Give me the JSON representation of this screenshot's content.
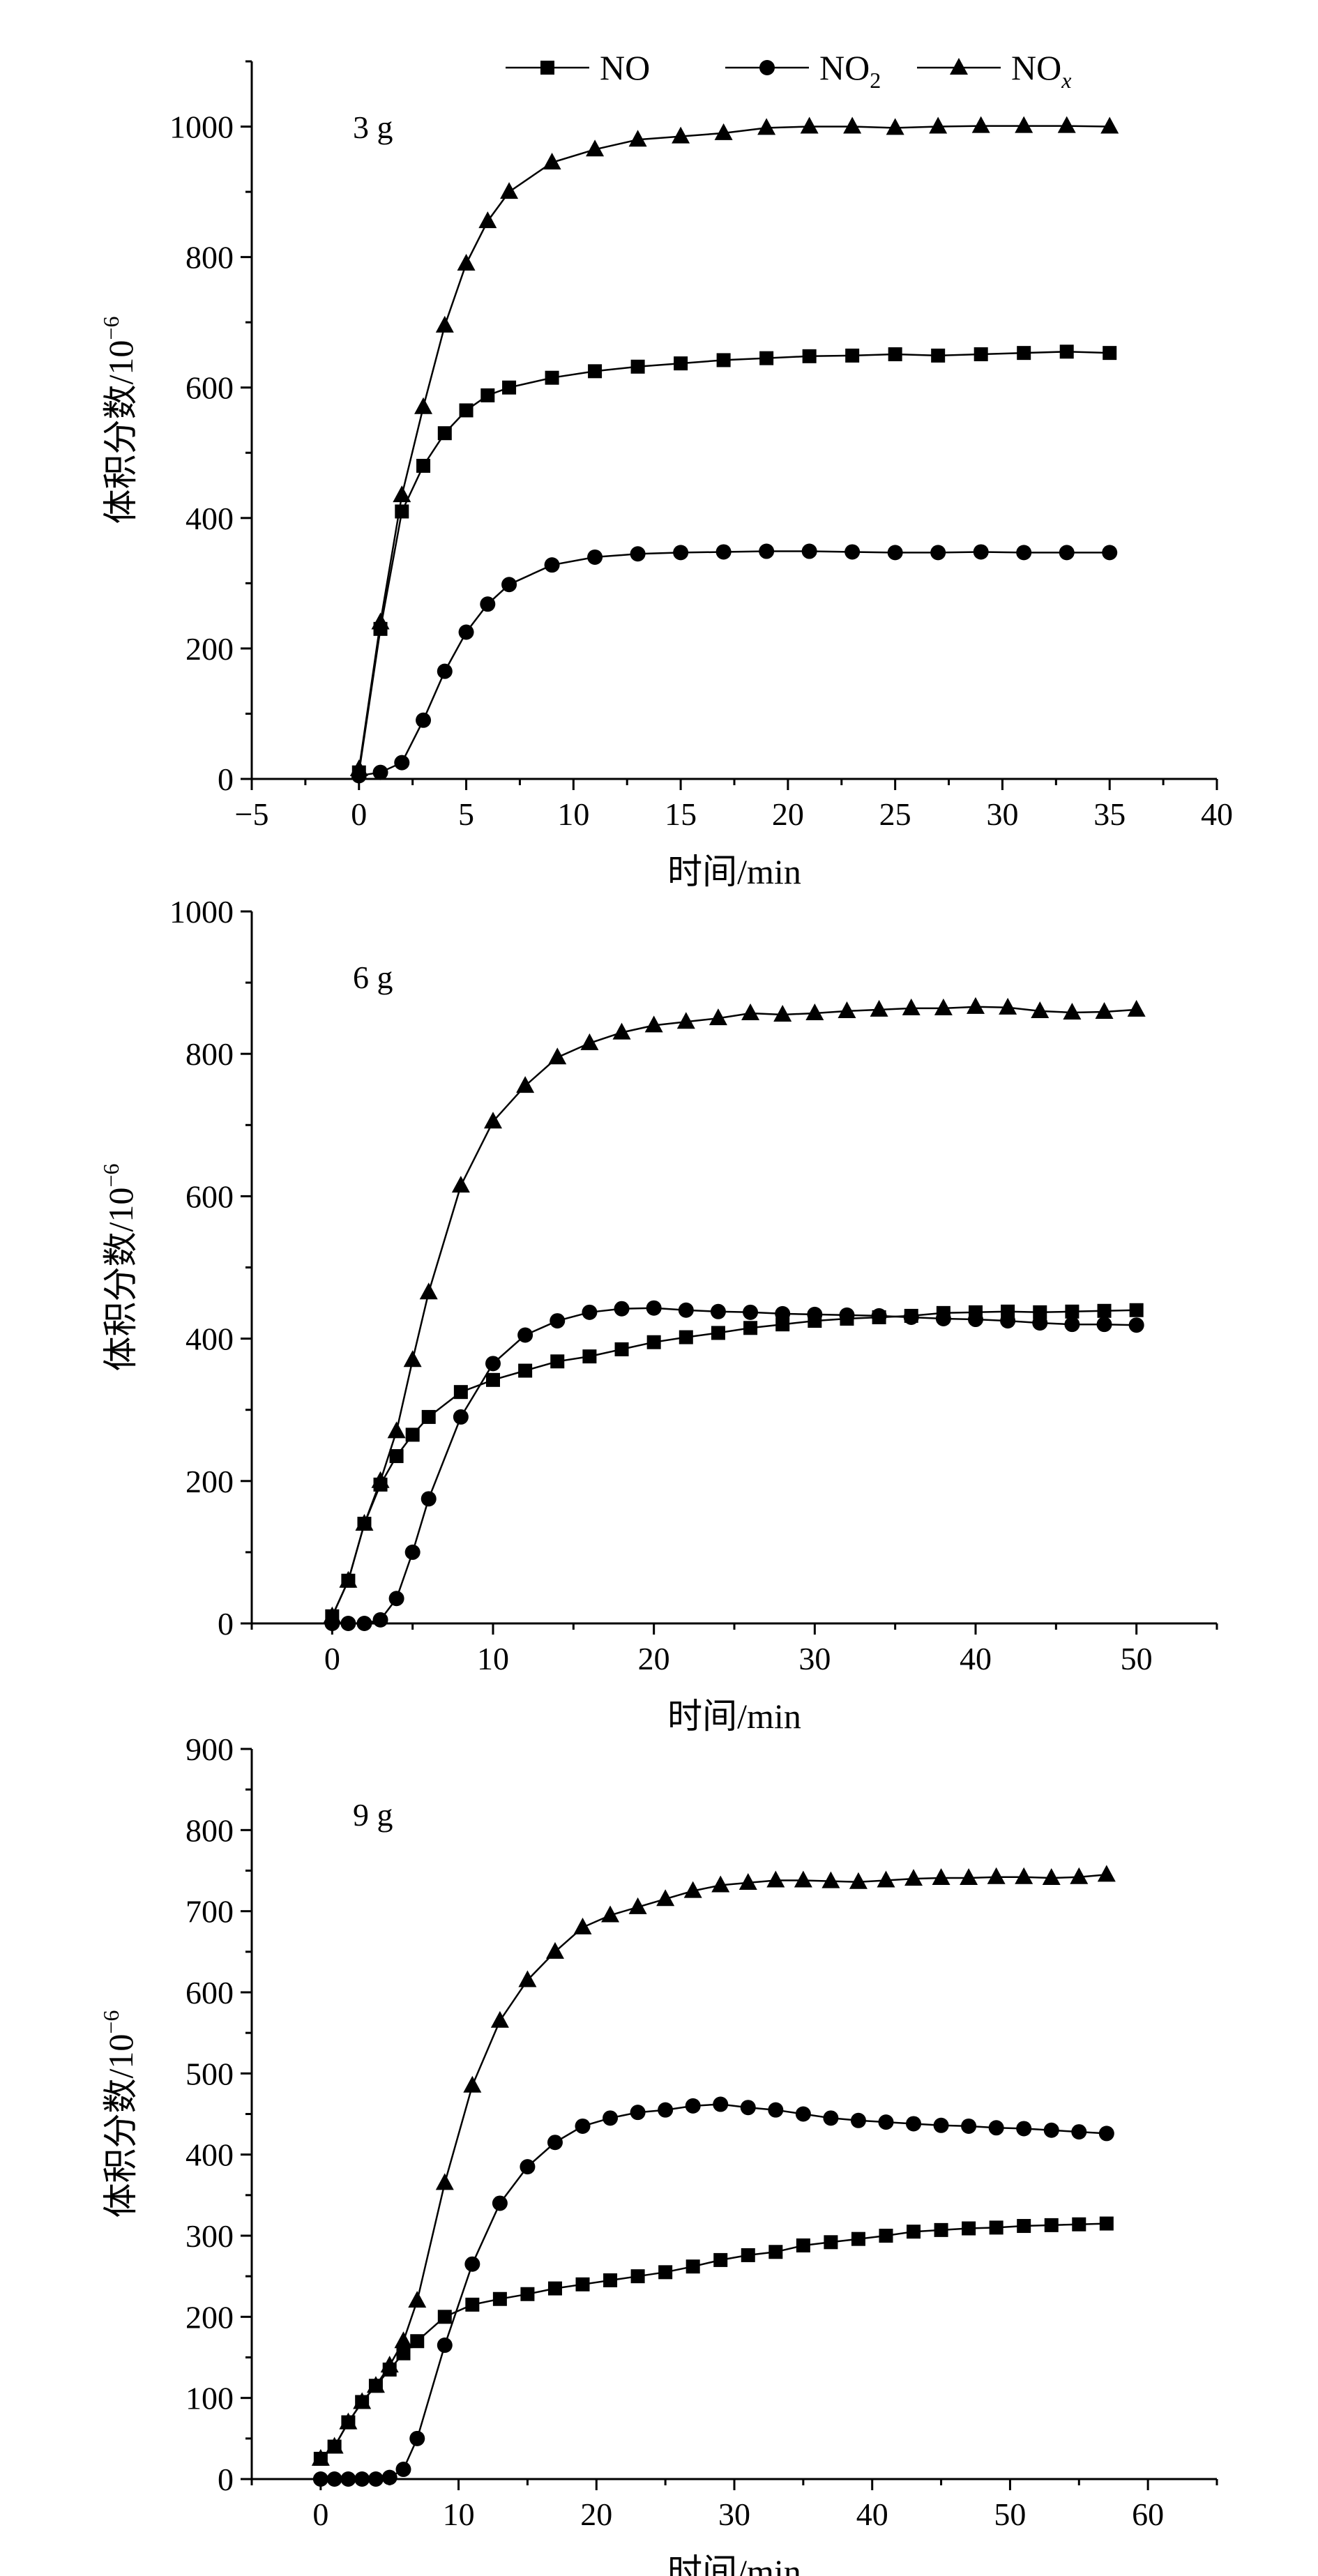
{
  "legend": {
    "entries": [
      {
        "base": "NO",
        "sub": "",
        "marker": "square"
      },
      {
        "base": "NO",
        "sub": "2",
        "marker": "circle"
      },
      {
        "base": "NO",
        "sub": "x",
        "marker": "triangle"
      }
    ]
  },
  "chart_data": [
    {
      "type": "line",
      "annotation": "3 g",
      "xlabel": "时间/min",
      "ylabel": "体积分数/10",
      "ylabel_exponent": "−6",
      "xlim": [
        -5,
        40
      ],
      "ylim": [
        0,
        1100
      ],
      "xticks": [
        -5,
        0,
        5,
        10,
        15,
        20,
        25,
        30,
        35,
        40
      ],
      "yticks": [
        0,
        200,
        400,
        600,
        800,
        1000
      ],
      "grid": false,
      "series": [
        {
          "name": "NO",
          "marker": "square",
          "x": [
            0,
            1,
            2,
            3,
            4,
            5,
            6,
            7,
            9,
            11,
            13,
            15,
            17,
            19,
            21,
            23,
            25,
            27,
            29,
            31,
            33,
            35
          ],
          "y": [
            10,
            230,
            410,
            480,
            530,
            565,
            588,
            600,
            615,
            625,
            632,
            637,
            642,
            645,
            648,
            649,
            651,
            649,
            651,
            653,
            655,
            653
          ]
        },
        {
          "name": "NO2",
          "marker": "circle",
          "x": [
            0,
            1,
            2,
            3,
            4,
            5,
            6,
            7,
            9,
            11,
            13,
            15,
            17,
            19,
            21,
            23,
            25,
            27,
            29,
            31,
            33,
            35
          ],
          "y": [
            5,
            10,
            25,
            90,
            165,
            225,
            268,
            298,
            328,
            340,
            345,
            347,
            348,
            349,
            349,
            348,
            347,
            347,
            348,
            347,
            347,
            347
          ]
        },
        {
          "name": "NOx",
          "marker": "triangle",
          "x": [
            0,
            1,
            2,
            3,
            4,
            5,
            6,
            7,
            9,
            11,
            13,
            15,
            17,
            19,
            21,
            23,
            25,
            27,
            29,
            31,
            33,
            35
          ],
          "y": [
            15,
            240,
            435,
            570,
            695,
            790,
            855,
            900,
            945,
            965,
            980,
            985,
            990,
            998,
            1000,
            1000,
            998,
            1000,
            1001,
            1001,
            1001,
            1000
          ]
        }
      ]
    },
    {
      "type": "line",
      "annotation": "6 g",
      "xlabel": "时间/min",
      "ylabel": "体积分数/10",
      "ylabel_exponent": "−6",
      "xlim": [
        -5,
        55
      ],
      "ylim": [
        0,
        1000
      ],
      "xticks": [
        0,
        10,
        20,
        30,
        40,
        50
      ],
      "yticks": [
        0,
        200,
        400,
        600,
        800,
        1000
      ],
      "grid": false,
      "series": [
        {
          "name": "NO",
          "marker": "square",
          "x": [
            0,
            1,
            2,
            3,
            4,
            5,
            6,
            8,
            10,
            12,
            14,
            16,
            18,
            20,
            22,
            24,
            26,
            28,
            30,
            32,
            34,
            36,
            38,
            40,
            42,
            44,
            46,
            48,
            50
          ],
          "y": [
            10,
            60,
            140,
            195,
            235,
            265,
            290,
            325,
            342,
            355,
            368,
            375,
            385,
            395,
            402,
            408,
            415,
            420,
            425,
            428,
            430,
            432,
            436,
            437,
            438,
            437,
            438,
            439,
            440
          ]
        },
        {
          "name": "NO2",
          "marker": "circle",
          "x": [
            0,
            1,
            2,
            3,
            4,
            5,
            6,
            8,
            10,
            12,
            14,
            16,
            18,
            20,
            22,
            24,
            26,
            28,
            30,
            32,
            34,
            36,
            38,
            40,
            42,
            44,
            46,
            48,
            50
          ],
          "y": [
            0,
            0,
            0,
            5,
            35,
            100,
            175,
            290,
            365,
            405,
            425,
            437,
            442,
            443,
            440,
            438,
            437,
            435,
            434,
            433,
            432,
            430,
            428,
            427,
            425,
            422,
            420,
            420,
            419
          ]
        },
        {
          "name": "NOx",
          "marker": "triangle",
          "x": [
            0,
            1,
            2,
            3,
            4,
            5,
            6,
            8,
            10,
            12,
            14,
            16,
            18,
            20,
            22,
            24,
            26,
            28,
            30,
            32,
            34,
            36,
            38,
            40,
            42,
            44,
            46,
            48,
            50
          ],
          "y": [
            10,
            60,
            140,
            200,
            270,
            370,
            465,
            615,
            705,
            755,
            795,
            815,
            830,
            840,
            845,
            850,
            857,
            855,
            857,
            860,
            862,
            864,
            864,
            866,
            865,
            860,
            858,
            859,
            862
          ]
        }
      ]
    },
    {
      "type": "line",
      "annotation": "9 g",
      "xlabel": "时间/min",
      "ylabel": "体积分数/10",
      "ylabel_exponent": "−6",
      "xlim": [
        -5,
        65
      ],
      "ylim": [
        0,
        900
      ],
      "xticks": [
        0,
        10,
        20,
        30,
        40,
        50,
        60
      ],
      "yticks": [
        0,
        100,
        200,
        300,
        400,
        500,
        600,
        700,
        800,
        900
      ],
      "grid": false,
      "series": [
        {
          "name": "NO",
          "marker": "square",
          "x": [
            0,
            1,
            2,
            3,
            4,
            5,
            6,
            7,
            9,
            11,
            13,
            15,
            17,
            19,
            21,
            23,
            25,
            27,
            29,
            31,
            33,
            35,
            37,
            39,
            41,
            43,
            45,
            47,
            49,
            51,
            53,
            55,
            57
          ],
          "y": [
            25,
            40,
            70,
            95,
            115,
            135,
            155,
            170,
            200,
            215,
            222,
            228,
            235,
            240,
            245,
            250,
            255,
            262,
            270,
            276,
            280,
            288,
            292,
            296,
            300,
            305,
            307,
            309,
            310,
            312,
            313,
            314,
            315
          ]
        },
        {
          "name": "NO2",
          "marker": "circle",
          "x": [
            0,
            1,
            2,
            3,
            4,
            5,
            6,
            7,
            9,
            11,
            13,
            15,
            17,
            19,
            21,
            23,
            25,
            27,
            29,
            31,
            33,
            35,
            37,
            39,
            41,
            43,
            45,
            47,
            49,
            51,
            53,
            55,
            57
          ],
          "y": [
            0,
            0,
            0,
            0,
            0,
            2,
            12,
            50,
            165,
            265,
            340,
            385,
            415,
            435,
            445,
            452,
            455,
            460,
            462,
            458,
            455,
            450,
            445,
            442,
            440,
            438,
            436,
            435,
            433,
            432,
            430,
            428,
            426
          ]
        },
        {
          "name": "NOx",
          "marker": "triangle",
          "x": [
            0,
            1,
            2,
            3,
            4,
            5,
            6,
            7,
            9,
            11,
            13,
            15,
            17,
            19,
            21,
            23,
            25,
            27,
            29,
            31,
            33,
            35,
            37,
            39,
            41,
            43,
            45,
            47,
            49,
            51,
            53,
            55,
            57
          ],
          "y": [
            25,
            40,
            70,
            95,
            115,
            140,
            170,
            220,
            365,
            485,
            565,
            615,
            650,
            680,
            695,
            705,
            715,
            725,
            732,
            735,
            738,
            738,
            737,
            736,
            738,
            740,
            741,
            741,
            742,
            742,
            741,
            742,
            745
          ]
        }
      ]
    }
  ]
}
